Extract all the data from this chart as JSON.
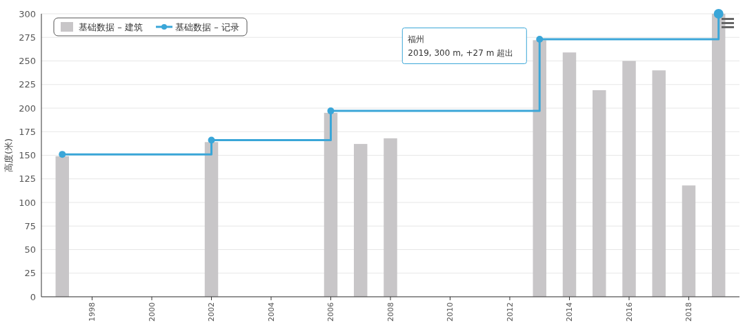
{
  "chart_data": {
    "type": "bar",
    "ylabel": "高度(米)",
    "legend": "top left",
    "x": [
      1997,
      2002,
      2006,
      2007,
      2008,
      2013,
      2014,
      2015,
      2016,
      2017,
      2018,
      2019
    ],
    "xlim": [
      1996.3,
      2019.7
    ],
    "xticks": [
      1998,
      2000,
      2002,
      2004,
      2006,
      2008,
      2010,
      2012,
      2014,
      2016,
      2018
    ],
    "ylim": [
      0,
      300
    ],
    "yticks": [
      0,
      25,
      50,
      75,
      100,
      125,
      150,
      175,
      200,
      225,
      250,
      275,
      300
    ],
    "grid": "y",
    "series": [
      {
        "name": "基础数据 – 建筑",
        "color": "#c8c6c8",
        "values": [
          149,
          164,
          195,
          162,
          168,
          272,
          259,
          219,
          250,
          240,
          118,
          300
        ]
      },
      {
        "name": "基础数据 – 记录",
        "type": "step",
        "color": "#3aa6d8",
        "marker": "circle",
        "x": [
          1997,
          2002,
          2006,
          2013,
          2019
        ],
        "values": [
          151,
          166,
          197,
          273,
          300
        ]
      }
    ],
    "annotations": [
      "福州\n2019, 300 m, +27 m 超出"
    ]
  }
}
